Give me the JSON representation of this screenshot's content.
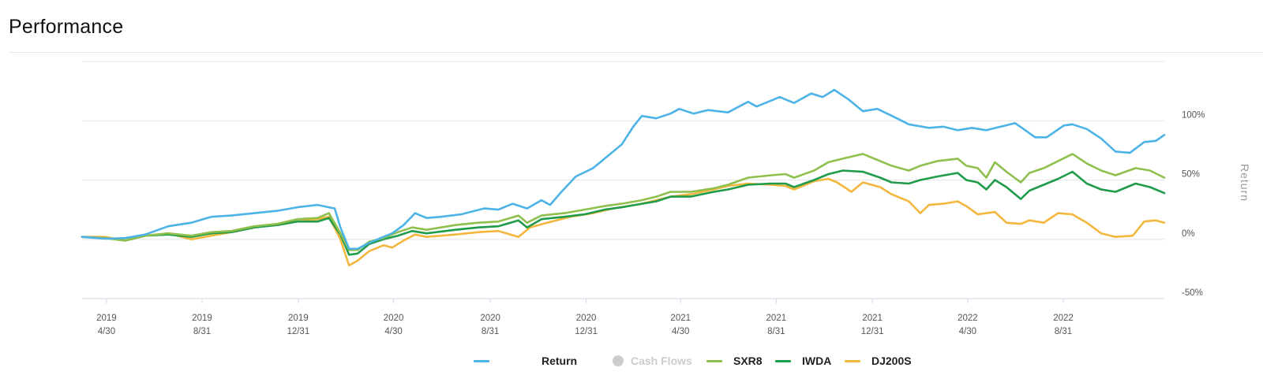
{
  "page": {
    "title": "Performance"
  },
  "chart_data": {
    "type": "line",
    "ylabel": "Return",
    "ylim": [
      -50,
      150
    ],
    "yticks": [
      "100%",
      "50%",
      "0%",
      "-50%"
    ],
    "ytick_values": [
      100,
      50,
      0,
      -50
    ],
    "grid": "horizontal",
    "legend_position": "bottom-center",
    "xticks": [
      {
        "year": "2019",
        "day": "4/30",
        "t": 0.085
      },
      {
        "year": "2019",
        "day": "8/31",
        "t": 0.418
      },
      {
        "year": "2019",
        "day": "12/31",
        "t": 0.753
      },
      {
        "year": "2020",
        "day": "4/30",
        "t": 1.085
      },
      {
        "year": "2020",
        "day": "8/31",
        "t": 1.422
      },
      {
        "year": "2020",
        "day": "12/31",
        "t": 1.756
      },
      {
        "year": "2021",
        "day": "4/30",
        "t": 2.085
      },
      {
        "year": "2021",
        "day": "8/31",
        "t": 2.418
      },
      {
        "year": "2021",
        "day": "12/31",
        "t": 2.753
      },
      {
        "year": "2022",
        "day": "4/30",
        "t": 3.085
      },
      {
        "year": "2022",
        "day": "8/31",
        "t": 3.418
      }
    ],
    "x_range": [
      0,
      3.77
    ],
    "series": [
      {
        "name": "Return",
        "color": "#4db3e6",
        "visible": true,
        "points": [
          [
            0,
            2
          ],
          [
            0.08,
            0.5
          ],
          [
            0.15,
            1
          ],
          [
            0.22,
            4
          ],
          [
            0.3,
            11
          ],
          [
            0.38,
            14
          ],
          [
            0.45,
            19
          ],
          [
            0.52,
            20
          ],
          [
            0.6,
            22
          ],
          [
            0.68,
            24
          ],
          [
            0.75,
            27
          ],
          [
            0.82,
            29
          ],
          [
            0.88,
            26
          ],
          [
            0.9,
            10
          ],
          [
            0.93,
            -8
          ],
          [
            0.96,
            -8
          ],
          [
            1.0,
            -3
          ],
          [
            1.05,
            2
          ],
          [
            1.08,
            5
          ],
          [
            1.12,
            12
          ],
          [
            1.16,
            22
          ],
          [
            1.2,
            18
          ],
          [
            1.25,
            19
          ],
          [
            1.32,
            21
          ],
          [
            1.4,
            26
          ],
          [
            1.45,
            25
          ],
          [
            1.5,
            30
          ],
          [
            1.55,
            26
          ],
          [
            1.6,
            33
          ],
          [
            1.63,
            29
          ],
          [
            1.67,
            40
          ],
          [
            1.72,
            53
          ],
          [
            1.78,
            60
          ],
          [
            1.83,
            70
          ],
          [
            1.88,
            80
          ],
          [
            1.92,
            95
          ],
          [
            1.95,
            104
          ],
          [
            2.0,
            102
          ],
          [
            2.05,
            106
          ],
          [
            2.08,
            110
          ],
          [
            2.13,
            106
          ],
          [
            2.18,
            109
          ],
          [
            2.25,
            107
          ],
          [
            2.32,
            116
          ],
          [
            2.35,
            112
          ],
          [
            2.4,
            117
          ],
          [
            2.43,
            120
          ],
          [
            2.48,
            115
          ],
          [
            2.54,
            123
          ],
          [
            2.58,
            120
          ],
          [
            2.62,
            126
          ],
          [
            2.67,
            118
          ],
          [
            2.72,
            108
          ],
          [
            2.77,
            110
          ],
          [
            2.83,
            103
          ],
          [
            2.88,
            97
          ],
          [
            2.95,
            94
          ],
          [
            3.0,
            95
          ],
          [
            3.05,
            92
          ],
          [
            3.1,
            94
          ],
          [
            3.15,
            92
          ],
          [
            3.2,
            95
          ],
          [
            3.25,
            98
          ],
          [
            3.28,
            93
          ],
          [
            3.32,
            86
          ],
          [
            3.36,
            86
          ],
          [
            3.42,
            96
          ],
          [
            3.45,
            97
          ],
          [
            3.5,
            93
          ],
          [
            3.55,
            85
          ],
          [
            3.6,
            74
          ],
          [
            3.65,
            73
          ],
          [
            3.7,
            82
          ],
          [
            3.74,
            83
          ],
          [
            3.77,
            88
          ]
        ]
      },
      {
        "name": "Cash Flows",
        "color": "#cccccc",
        "visible": false,
        "points": []
      },
      {
        "name": "SXR8",
        "color": "#8fbf4d",
        "visible": true,
        "points": [
          [
            0,
            2
          ],
          [
            0.08,
            1
          ],
          [
            0.15,
            -1
          ],
          [
            0.22,
            3
          ],
          [
            0.3,
            5
          ],
          [
            0.38,
            3
          ],
          [
            0.45,
            6
          ],
          [
            0.52,
            7
          ],
          [
            0.6,
            11
          ],
          [
            0.68,
            13
          ],
          [
            0.75,
            17
          ],
          [
            0.82,
            18
          ],
          [
            0.86,
            22
          ],
          [
            0.9,
            5
          ],
          [
            0.93,
            -9
          ],
          [
            0.96,
            -9
          ],
          [
            1.0,
            -2
          ],
          [
            1.05,
            1
          ],
          [
            1.1,
            6
          ],
          [
            1.15,
            10
          ],
          [
            1.2,
            8
          ],
          [
            1.3,
            12
          ],
          [
            1.38,
            14
          ],
          [
            1.45,
            15
          ],
          [
            1.52,
            20
          ],
          [
            1.55,
            14
          ],
          [
            1.6,
            20
          ],
          [
            1.68,
            22
          ],
          [
            1.75,
            25
          ],
          [
            1.82,
            28
          ],
          [
            1.88,
            30
          ],
          [
            1.95,
            33
          ],
          [
            2.0,
            36
          ],
          [
            2.05,
            40
          ],
          [
            2.12,
            40
          ],
          [
            2.2,
            43
          ],
          [
            2.25,
            46
          ],
          [
            2.32,
            52
          ],
          [
            2.4,
            54
          ],
          [
            2.45,
            55
          ],
          [
            2.48,
            52
          ],
          [
            2.55,
            58
          ],
          [
            2.6,
            65
          ],
          [
            2.65,
            68
          ],
          [
            2.72,
            72
          ],
          [
            2.78,
            66
          ],
          [
            2.82,
            62
          ],
          [
            2.88,
            58
          ],
          [
            2.92,
            62
          ],
          [
            2.98,
            66
          ],
          [
            3.05,
            68
          ],
          [
            3.08,
            62
          ],
          [
            3.12,
            60
          ],
          [
            3.15,
            52
          ],
          [
            3.18,
            65
          ],
          [
            3.22,
            57
          ],
          [
            3.27,
            48
          ],
          [
            3.3,
            56
          ],
          [
            3.35,
            60
          ],
          [
            3.4,
            66
          ],
          [
            3.45,
            72
          ],
          [
            3.5,
            64
          ],
          [
            3.55,
            58
          ],
          [
            3.6,
            54
          ],
          [
            3.67,
            60
          ],
          [
            3.72,
            58
          ],
          [
            3.77,
            52
          ]
        ]
      },
      {
        "name": "IWDA",
        "color": "#1f9b4a",
        "visible": true,
        "points": [
          [
            0,
            2
          ],
          [
            0.08,
            1
          ],
          [
            0.15,
            -1
          ],
          [
            0.22,
            3
          ],
          [
            0.3,
            4
          ],
          [
            0.38,
            2
          ],
          [
            0.45,
            5
          ],
          [
            0.52,
            6
          ],
          [
            0.6,
            10
          ],
          [
            0.68,
            12
          ],
          [
            0.75,
            15
          ],
          [
            0.82,
            15
          ],
          [
            0.86,
            18
          ],
          [
            0.9,
            4
          ],
          [
            0.93,
            -13
          ],
          [
            0.96,
            -12
          ],
          [
            1.0,
            -4
          ],
          [
            1.05,
            0
          ],
          [
            1.1,
            3
          ],
          [
            1.15,
            7
          ],
          [
            1.2,
            5
          ],
          [
            1.3,
            8
          ],
          [
            1.38,
            10
          ],
          [
            1.45,
            11
          ],
          [
            1.52,
            16
          ],
          [
            1.55,
            10
          ],
          [
            1.6,
            17
          ],
          [
            1.68,
            19
          ],
          [
            1.75,
            21
          ],
          [
            1.82,
            25
          ],
          [
            1.88,
            27
          ],
          [
            1.95,
            30
          ],
          [
            2.0,
            32
          ],
          [
            2.05,
            36
          ],
          [
            2.12,
            36
          ],
          [
            2.2,
            40
          ],
          [
            2.25,
            42
          ],
          [
            2.32,
            46
          ],
          [
            2.4,
            47
          ],
          [
            2.45,
            47
          ],
          [
            2.48,
            44
          ],
          [
            2.55,
            50
          ],
          [
            2.6,
            55
          ],
          [
            2.65,
            58
          ],
          [
            2.72,
            57
          ],
          [
            2.78,
            52
          ],
          [
            2.82,
            48
          ],
          [
            2.88,
            47
          ],
          [
            2.92,
            50
          ],
          [
            2.98,
            53
          ],
          [
            3.05,
            56
          ],
          [
            3.08,
            50
          ],
          [
            3.12,
            48
          ],
          [
            3.15,
            42
          ],
          [
            3.18,
            50
          ],
          [
            3.22,
            44
          ],
          [
            3.27,
            34
          ],
          [
            3.3,
            41
          ],
          [
            3.35,
            46
          ],
          [
            3.4,
            51
          ],
          [
            3.45,
            57
          ],
          [
            3.5,
            47
          ],
          [
            3.55,
            42
          ],
          [
            3.6,
            40
          ],
          [
            3.67,
            47
          ],
          [
            3.72,
            44
          ],
          [
            3.77,
            39
          ]
        ]
      },
      {
        "name": "DJ200S",
        "color": "#f4b73e",
        "visible": true,
        "points": [
          [
            0,
            2
          ],
          [
            0.08,
            2
          ],
          [
            0.15,
            -1
          ],
          [
            0.22,
            3
          ],
          [
            0.3,
            5
          ],
          [
            0.38,
            0
          ],
          [
            0.45,
            3
          ],
          [
            0.52,
            6
          ],
          [
            0.6,
            10
          ],
          [
            0.68,
            13
          ],
          [
            0.75,
            15
          ],
          [
            0.82,
            17
          ],
          [
            0.86,
            19
          ],
          [
            0.9,
            0
          ],
          [
            0.93,
            -22
          ],
          [
            0.96,
            -18
          ],
          [
            1.0,
            -10
          ],
          [
            1.05,
            -5
          ],
          [
            1.08,
            -7
          ],
          [
            1.12,
            -1
          ],
          [
            1.16,
            4
          ],
          [
            1.2,
            2
          ],
          [
            1.3,
            4
          ],
          [
            1.38,
            6
          ],
          [
            1.45,
            7
          ],
          [
            1.52,
            2
          ],
          [
            1.56,
            10
          ],
          [
            1.62,
            14
          ],
          [
            1.7,
            19
          ],
          [
            1.78,
            22
          ],
          [
            1.85,
            26
          ],
          [
            1.9,
            28
          ],
          [
            1.95,
            30
          ],
          [
            2.0,
            33
          ],
          [
            2.05,
            36
          ],
          [
            2.12,
            38
          ],
          [
            2.2,
            42
          ],
          [
            2.25,
            45
          ],
          [
            2.32,
            47
          ],
          [
            2.4,
            46
          ],
          [
            2.45,
            45
          ],
          [
            2.48,
            42
          ],
          [
            2.55,
            49
          ],
          [
            2.6,
            51
          ],
          [
            2.63,
            48
          ],
          [
            2.68,
            40
          ],
          [
            2.72,
            48
          ],
          [
            2.78,
            44
          ],
          [
            2.82,
            38
          ],
          [
            2.88,
            32
          ],
          [
            2.92,
            22
          ],
          [
            2.95,
            29
          ],
          [
            3.0,
            30
          ],
          [
            3.05,
            32
          ],
          [
            3.08,
            28
          ],
          [
            3.12,
            21
          ],
          [
            3.18,
            23
          ],
          [
            3.22,
            14
          ],
          [
            3.27,
            13
          ],
          [
            3.3,
            16
          ],
          [
            3.35,
            14
          ],
          [
            3.4,
            22
          ],
          [
            3.45,
            21
          ],
          [
            3.5,
            14
          ],
          [
            3.55,
            5
          ],
          [
            3.6,
            2
          ],
          [
            3.66,
            3
          ],
          [
            3.7,
            15
          ],
          [
            3.74,
            16
          ],
          [
            3.77,
            14
          ]
        ]
      }
    ]
  }
}
